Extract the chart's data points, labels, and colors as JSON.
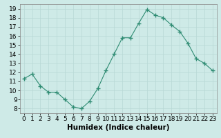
{
  "x": [
    0,
    1,
    2,
    3,
    4,
    5,
    6,
    7,
    8,
    9,
    10,
    11,
    12,
    13,
    14,
    15,
    16,
    17,
    18,
    19,
    20,
    21,
    22,
    23
  ],
  "y": [
    11.3,
    11.8,
    10.5,
    9.8,
    9.8,
    9.0,
    8.2,
    8.0,
    8.8,
    10.2,
    12.2,
    14.0,
    15.8,
    15.8,
    17.4,
    18.9,
    18.3,
    18.0,
    17.2,
    16.5,
    15.2,
    13.5,
    13.0,
    12.2
  ],
  "line_color": "#2e8b72",
  "marker": "+",
  "marker_size": 4,
  "marker_linewidth": 1.0,
  "line_width": 0.8,
  "bg_color": "#ceeae7",
  "grid_color": "#b8d8d5",
  "xlabel": "Humidex (Indice chaleur)",
  "xlim": [
    -0.5,
    23.5
  ],
  "ylim": [
    7.5,
    19.5
  ],
  "yticks": [
    8,
    9,
    10,
    11,
    12,
    13,
    14,
    15,
    16,
    17,
    18,
    19
  ],
  "xticks": [
    0,
    1,
    2,
    3,
    4,
    5,
    6,
    7,
    8,
    9,
    10,
    11,
    12,
    13,
    14,
    15,
    16,
    17,
    18,
    19,
    20,
    21,
    22,
    23
  ],
  "tick_fontsize": 6.5,
  "xlabel_fontsize": 7.5,
  "spine_color": "#888888"
}
